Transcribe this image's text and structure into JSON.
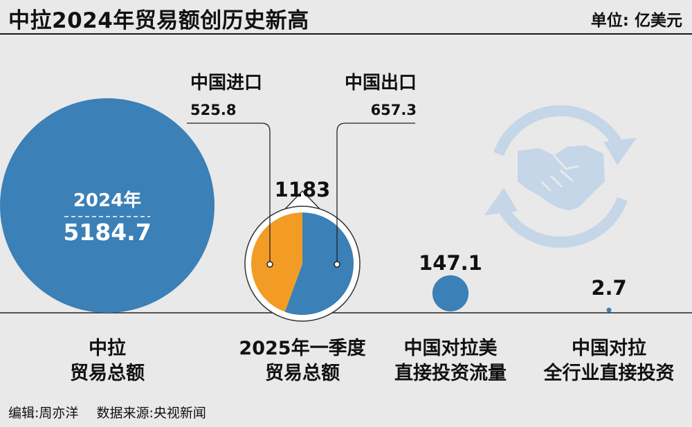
{
  "header": {
    "title": "中拉2024年贸易额创历史新高",
    "unit": "单位: 亿美元"
  },
  "footer": {
    "editor": "编辑:周亦洋",
    "source": "数据来源:央视新闻"
  },
  "colors": {
    "blue": "#3b80b7",
    "orange": "#f29c26",
    "bg": "#e9e9e9",
    "icon": "#c4d6e8"
  },
  "chart_data": {
    "type": "bubble",
    "items": [
      {
        "label_lines": [
          "中拉",
          "贸易总额"
        ],
        "value": 5184.7,
        "inner_label": "2024年",
        "value_text": "5184.7"
      },
      {
        "label_lines": [
          "2025年一季度",
          "贸易总额"
        ],
        "value": 1183,
        "value_text": "1183",
        "breakdown": [
          {
            "name": "中国进口",
            "value": 525.8,
            "value_text": "525.8",
            "color": "#f29c26"
          },
          {
            "name": "中国出口",
            "value": 657.3,
            "value_text": "657.3",
            "color": "#3b80b7"
          }
        ]
      },
      {
        "label_lines": [
          "中国对拉美",
          "直接投资流量"
        ],
        "value": 147.1,
        "value_text": "147.1"
      },
      {
        "label_lines": [
          "中国对拉",
          "全行业直接投资"
        ],
        "value": 2.7,
        "value_text": "2.7"
      }
    ]
  }
}
